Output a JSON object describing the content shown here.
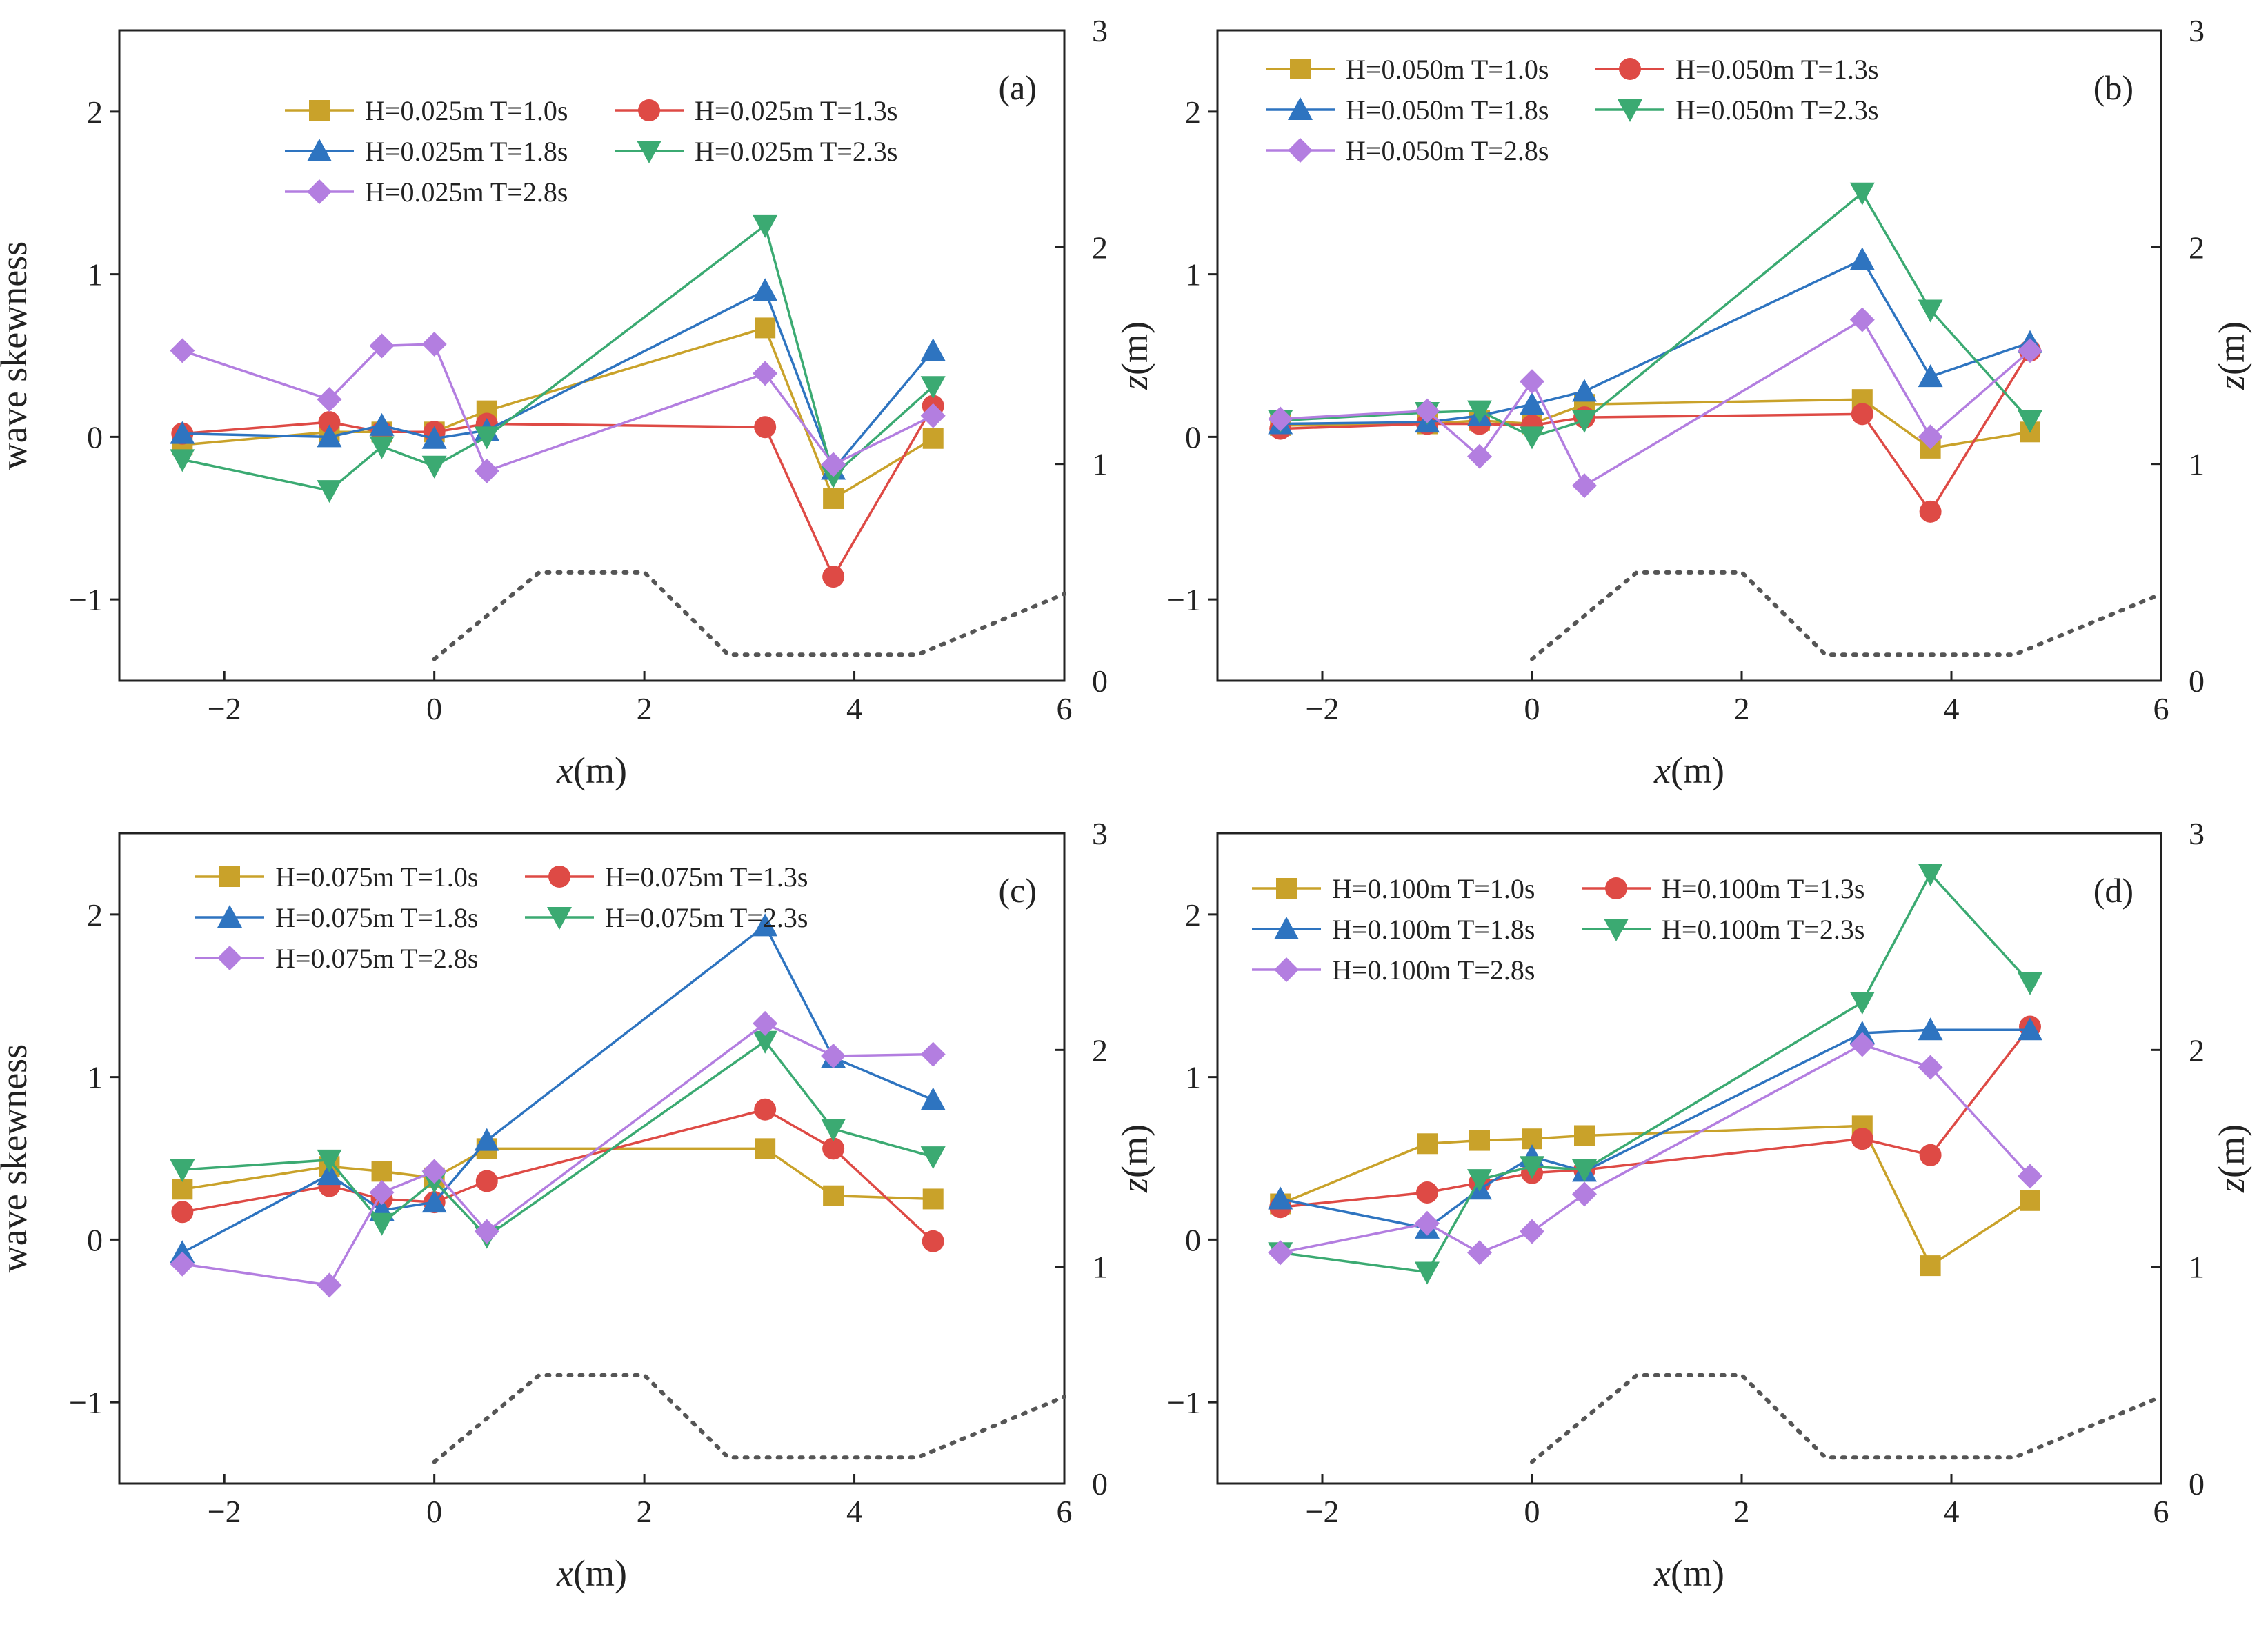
{
  "colors": {
    "T1.0": "#C9A22A",
    "T1.3": "#DE4A45",
    "T1.8": "#2E74C0",
    "T2.3": "#3BAA72",
    "T2.8": "#B37EE0",
    "axis": "#222222",
    "bathymetry": "#555555"
  },
  "chart_data": [
    {
      "type": "line",
      "panel": "(a)",
      "xlabel_italic": "x",
      "xlabel_unit": "(m)",
      "ylabel": "wave skewness",
      "y2label_italic": "z",
      "y2label_unit": "(m)",
      "xlim": [
        -3,
        6
      ],
      "ylim": [
        -1.5,
        2.5
      ],
      "y2lim": [
        0,
        3
      ],
      "xticks": [
        "−2",
        "0",
        "2",
        "4",
        "6"
      ],
      "yticks": [
        "−1",
        "0",
        "1",
        "2"
      ],
      "y2ticks": [
        "0",
        "1",
        "2",
        "3"
      ],
      "x": [
        -2.4,
        -1.0,
        -0.5,
        0.0,
        0.5,
        3.15,
        3.8,
        4.75
      ],
      "series": [
        {
          "name": "H=0.025m T=1.0s",
          "color_key": "T1.0",
          "marker": "square",
          "values": [
            -0.05,
            0.03,
            0.03,
            0.03,
            0.16,
            0.67,
            -0.38,
            -0.01
          ]
        },
        {
          "name": "H=0.025m T=1.3s",
          "color_key": "T1.3",
          "marker": "circle",
          "values": [
            0.02,
            0.09,
            0.03,
            0.03,
            0.08,
            0.06,
            -0.86,
            0.19
          ]
        },
        {
          "name": "H=0.025m T=1.8s",
          "color_key": "T1.8",
          "marker": "triangle-up",
          "values": [
            0.02,
            0.0,
            0.07,
            -0.01,
            0.04,
            0.9,
            -0.2,
            0.53
          ]
        },
        {
          "name": "H=0.025m T=2.3s",
          "color_key": "T2.3",
          "marker": "triangle-down",
          "values": [
            -0.14,
            -0.33,
            -0.06,
            -0.18,
            0.0,
            1.3,
            -0.24,
            0.31
          ]
        },
        {
          "name": "H=0.025m T=2.8s",
          "color_key": "T2.8",
          "marker": "diamond",
          "values": [
            0.53,
            0.23,
            0.56,
            0.57,
            -0.21,
            0.39,
            -0.17,
            0.13
          ]
        }
      ]
    },
    {
      "type": "line",
      "panel": "(b)",
      "xlabel_italic": "x",
      "xlabel_unit": "(m)",
      "ylabel": "",
      "y2label_italic": "z",
      "y2label_unit": "(m)",
      "xlim": [
        -3,
        6
      ],
      "ylim": [
        -1.5,
        2.5
      ],
      "y2lim": [
        0,
        3
      ],
      "xticks": [
        "−2",
        "0",
        "2",
        "4",
        "6"
      ],
      "yticks": [
        "−1",
        "0",
        "1",
        "2"
      ],
      "y2ticks": [
        "0",
        "1",
        "2",
        "3"
      ],
      "x": [
        -2.4,
        -1.0,
        -0.5,
        0.0,
        0.5,
        3.15,
        3.8,
        4.75
      ],
      "series": [
        {
          "name": "H=0.050m T=1.0s",
          "color_key": "T1.0",
          "marker": "square",
          "values": [
            0.07,
            0.08,
            0.1,
            0.08,
            0.2,
            0.23,
            -0.07,
            0.03
          ]
        },
        {
          "name": "H=0.050m T=1.3s",
          "color_key": "T1.3",
          "marker": "circle",
          "values": [
            0.05,
            0.08,
            0.08,
            0.07,
            0.12,
            0.14,
            -0.46,
            0.53
          ]
        },
        {
          "name": "H=0.050m T=1.8s",
          "color_key": "T1.8",
          "marker": "triangle-up",
          "values": [
            0.08,
            0.09,
            0.13,
            0.2,
            0.28,
            1.09,
            0.37,
            0.58
          ]
        },
        {
          "name": "H=0.050m T=2.3s",
          "color_key": "T2.3",
          "marker": "triangle-down",
          "values": [
            0.1,
            0.15,
            0.16,
            0.0,
            0.1,
            1.5,
            0.78,
            0.1
          ]
        },
        {
          "name": "H=0.050m T=2.8s",
          "color_key": "T2.8",
          "marker": "diamond",
          "values": [
            0.11,
            0.16,
            -0.12,
            0.34,
            -0.3,
            0.72,
            0.0,
            0.53
          ]
        }
      ]
    },
    {
      "type": "line",
      "panel": "(c)",
      "xlabel_italic": "x",
      "xlabel_unit": "(m)",
      "ylabel": "wave skewness",
      "y2label_italic": "z",
      "y2label_unit": "(m)",
      "xlim": [
        -3,
        6
      ],
      "ylim": [
        -1.5,
        2.5
      ],
      "y2lim": [
        0,
        3
      ],
      "xticks": [
        "−2",
        "0",
        "2",
        "4",
        "6"
      ],
      "yticks": [
        "−1",
        "0",
        "1",
        "2"
      ],
      "y2ticks": [
        "0",
        "1",
        "2",
        "3"
      ],
      "x": [
        -2.4,
        -1.0,
        -0.5,
        0.0,
        0.5,
        3.15,
        3.8,
        4.75
      ],
      "series": [
        {
          "name": "H=0.075m T=1.0s",
          "color_key": "T1.0",
          "marker": "square",
          "values": [
            0.31,
            0.45,
            0.42,
            0.38,
            0.56,
            0.56,
            0.27,
            0.25
          ]
        },
        {
          "name": "H=0.075m T=1.3s",
          "color_key": "T1.3",
          "marker": "circle",
          "values": [
            0.17,
            0.33,
            0.25,
            0.23,
            0.36,
            0.8,
            0.56,
            -0.01
          ]
        },
        {
          "name": "H=0.075m T=1.8s",
          "color_key": "T1.8",
          "marker": "triangle-up",
          "values": [
            -0.08,
            0.4,
            0.18,
            0.23,
            0.61,
            1.93,
            1.12,
            0.86
          ]
        },
        {
          "name": "H=0.075m T=2.3s",
          "color_key": "T2.3",
          "marker": "triangle-down",
          "values": [
            0.43,
            0.49,
            0.1,
            0.36,
            0.02,
            1.22,
            0.68,
            0.51
          ]
        },
        {
          "name": "H=0.075m T=2.8s",
          "color_key": "T2.8",
          "marker": "diamond",
          "values": [
            -0.15,
            -0.28,
            0.29,
            0.42,
            0.05,
            1.33,
            1.13,
            1.14
          ]
        }
      ]
    },
    {
      "type": "line",
      "panel": "(d)",
      "xlabel_italic": "x",
      "xlabel_unit": "(m)",
      "ylabel": "",
      "y2label_italic": "z",
      "y2label_unit": "(m)",
      "xlim": [
        -3,
        6
      ],
      "ylim": [
        -1.5,
        2.5
      ],
      "y2lim": [
        0,
        3
      ],
      "xticks": [
        "−2",
        "0",
        "2",
        "4",
        "6"
      ],
      "yticks": [
        "−1",
        "0",
        "1",
        "2"
      ],
      "y2ticks": [
        "0",
        "1",
        "2",
        "3"
      ],
      "x": [
        -2.4,
        -1.0,
        -0.5,
        0.0,
        0.5,
        3.15,
        3.8,
        4.75
      ],
      "series": [
        {
          "name": "H=0.100m T=1.0s",
          "color_key": "T1.0",
          "marker": "square",
          "values": [
            0.22,
            0.59,
            0.61,
            0.62,
            0.64,
            0.7,
            -0.16,
            0.24
          ]
        },
        {
          "name": "H=0.100m T=1.3s",
          "color_key": "T1.3",
          "marker": "circle",
          "values": [
            0.2,
            0.29,
            0.35,
            0.41,
            0.43,
            0.62,
            0.52,
            1.31
          ]
        },
        {
          "name": "H=0.100m T=1.8s",
          "color_key": "T1.8",
          "marker": "triangle-up",
          "values": [
            0.25,
            0.07,
            0.31,
            0.51,
            0.42,
            1.27,
            1.29,
            1.29
          ]
        },
        {
          "name": "H=0.100m T=2.3s",
          "color_key": "T2.3",
          "marker": "triangle-down",
          "values": [
            -0.08,
            -0.2,
            0.37,
            0.45,
            0.43,
            1.46,
            2.25,
            1.58
          ]
        },
        {
          "name": "H=0.100m T=2.8s",
          "color_key": "T2.8",
          "marker": "diamond",
          "values": [
            -0.08,
            0.1,
            -0.08,
            0.05,
            0.28,
            1.2,
            1.06,
            0.39
          ]
        }
      ]
    }
  ],
  "bathymetry": {
    "x": [
      0.0,
      1.0,
      2.0,
      2.8,
      4.6,
      6.0
    ],
    "z": [
      0.1,
      0.5,
      0.5,
      0.12,
      0.12,
      0.4
    ]
  }
}
